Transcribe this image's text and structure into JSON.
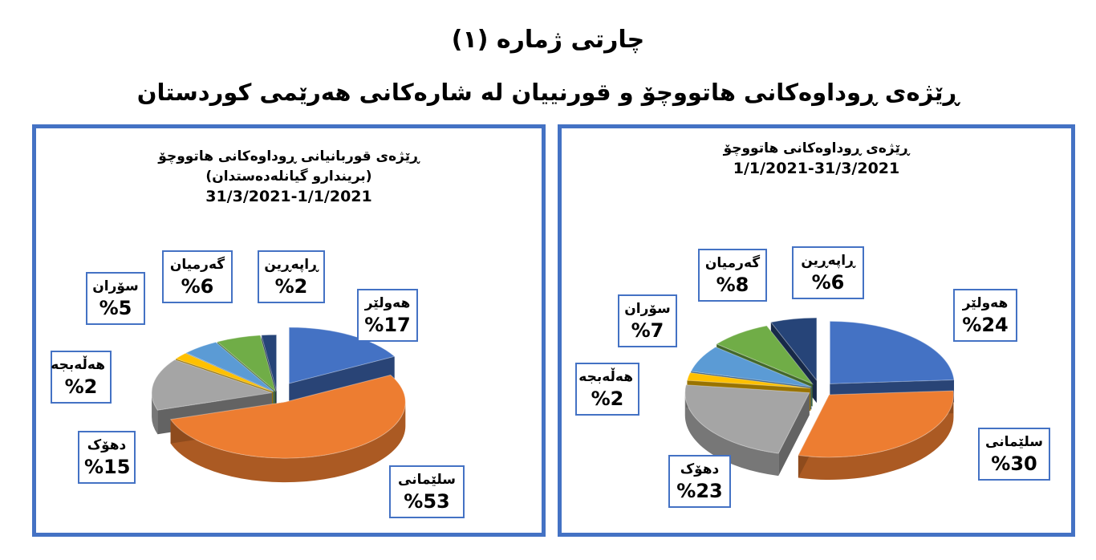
{
  "header": {
    "title": "چارتی ژماره (۱)",
    "subtitle": "ڕێژەی ڕوداوەکانی هاتووچۆ و قورنییان لە شارەکانی هەرێمی کوردستان"
  },
  "chart_data": [
    {
      "type": "pie",
      "title_lines": [
        "ڕێژەی قوربانیانی ڕوداوەکانی هاتووچۆ",
        "(بریندارو گیانلەدەستدان)"
      ],
      "date_range": "31/3/2021-1/1/2021",
      "categories": [
        "هەولێر",
        "سلێمانی",
        "دهۆک",
        "هەڵەبجە",
        "سۆران",
        "گەرمیان",
        "ڕاپەڕین"
      ],
      "values": [
        17,
        53,
        15,
        2,
        5,
        6,
        2
      ],
      "value_labels": [
        "%17",
        "%53",
        "%15",
        "%2",
        "%5",
        "%6",
        "%2"
      ],
      "colors": [
        "#4472C4",
        "#ED7D31",
        "#A5A5A5",
        "#FFC000",
        "#5B9BD5",
        "#70AD47",
        "#264478"
      ],
      "exploded": true,
      "three_d": true
    },
    {
      "type": "pie",
      "title_lines": [
        "ڕێژەی ڕوداوەکانی هاتووچۆ"
      ],
      "date_range": "1/1/2021-31/3/2021",
      "categories": [
        "هەولێر",
        "سلێمانی",
        "دهۆک",
        "هەڵەبجە",
        "سۆران",
        "گەرمیان",
        "ڕاپەڕین"
      ],
      "values": [
        24,
        30,
        23,
        2,
        7,
        8,
        6
      ],
      "value_labels": [
        "%24",
        "%30",
        "%23",
        "%2",
        "%7",
        "%8",
        "%6"
      ],
      "colors": [
        "#4472C4",
        "#ED7D31",
        "#A5A5A5",
        "#FFC000",
        "#5B9BD5",
        "#70AD47",
        "#264478"
      ],
      "exploded": true,
      "three_d": true
    }
  ]
}
